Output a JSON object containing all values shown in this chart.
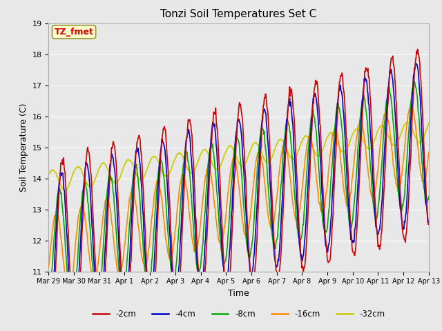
{
  "title": "Tonzi Soil Temperatures Set C",
  "xlabel": "Time",
  "ylabel": "Soil Temperature (C)",
  "ylim": [
    11.0,
    19.0
  ],
  "yticks": [
    11.0,
    12.0,
    13.0,
    14.0,
    15.0,
    16.0,
    17.0,
    18.0,
    19.0
  ],
  "xtick_labels": [
    "Mar 29",
    "Mar 30",
    "Mar 31",
    "Apr 1",
    "Apr 2",
    "Apr 3",
    "Apr 4",
    "Apr 5",
    "Apr 6",
    "Apr 7",
    "Apr 8",
    "Apr 9",
    "Apr 10",
    "Apr 11",
    "Apr 12",
    "Apr 13"
  ],
  "colors": {
    "-2cm": "#cc0000",
    "-4cm": "#0000cc",
    "-8cm": "#00aa00",
    "-16cm": "#ff8800",
    "-32cm": "#cccc00"
  },
  "legend_label_box": "TZ_fmet",
  "plot_bg_color": "#e8e8e8",
  "grid_color": "#ffffff",
  "annotation_box_color": "#ffffcc",
  "annotation_text_color": "#cc0000"
}
